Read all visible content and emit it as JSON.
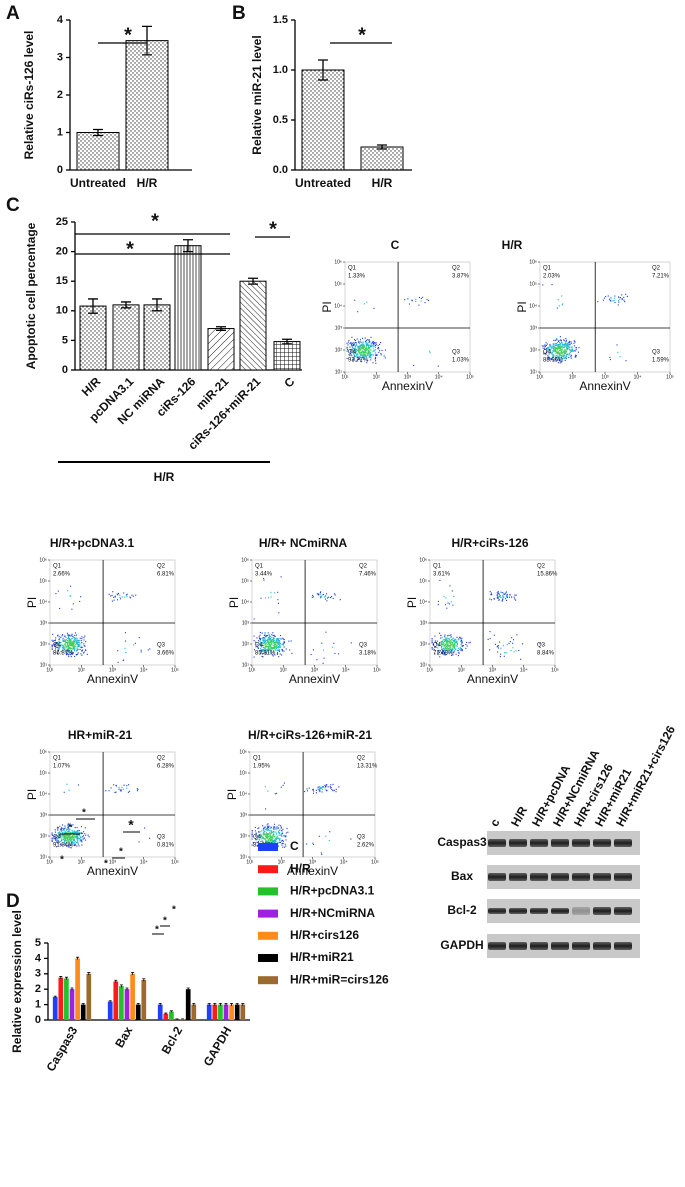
{
  "chart_data": [
    {
      "type": "bar",
      "panel": "A",
      "ylabel": "Relative ciRs-126 level",
      "categories": [
        "Untreated",
        "H/R"
      ],
      "values": [
        1,
        3.45
      ],
      "errors": [
        0.08,
        0.38
      ],
      "ylim": [
        0,
        4
      ],
      "yticks": [
        0,
        1,
        2,
        3,
        4
      ],
      "annotations": [
        "*"
      ]
    },
    {
      "type": "bar",
      "panel": "B",
      "ylabel": "Relative miR-21 level",
      "categories": [
        "Untreated",
        "H/R"
      ],
      "values": [
        1,
        0.23
      ],
      "errors": [
        0.1,
        0.02
      ],
      "ylim": [
        0,
        1.5
      ],
      "yticks": [
        {
          "value": 0,
          "label": "0.0"
        },
        {
          "value": 0.5,
          "label": "0.5"
        },
        {
          "value": 1,
          "label": "1.0"
        },
        {
          "value": 1.5,
          "label": "1.5"
        }
      ],
      "annotations": [
        "*"
      ]
    },
    {
      "type": "bar",
      "panel": "C",
      "ylabel": "Apoptotic cell percentage",
      "categories": [
        "H/R",
        "pcDNA3.1",
        "NC miRNA",
        "ciRs-126",
        "miR-21",
        "ciRs-126+miR-21",
        "C"
      ],
      "values": [
        10.8,
        11,
        11,
        21,
        7,
        15,
        4.8
      ],
      "errors": [
        1.2,
        0.5,
        1,
        1,
        0.3,
        0.5,
        0.4
      ],
      "ylim": [
        0,
        25
      ],
      "yticks": [
        0,
        5,
        10,
        15,
        20,
        25
      ],
      "group_label": "H/R",
      "annotations": [
        "*",
        "*",
        "*"
      ]
    },
    {
      "type": "flow",
      "title": "C",
      "xlabel": "AnnexinV",
      "ylabel": "PI",
      "quadrants": [
        "Q1",
        "Q2",
        "Q3",
        "Q4"
      ],
      "values": [
        1.33,
        3.87,
        1.03,
        93.77
      ],
      "value_labels": [
        "1.33%",
        "3.87%",
        "1.03%",
        "93.77%"
      ],
      "log_scale": true,
      "xlim": [
        10,
        100000
      ],
      "ylim": [
        10,
        1000000
      ],
      "xgate": 500,
      "ygate": 1000,
      "xticks": [
        {
          "value": 10,
          "label": "10¹"
        },
        {
          "value": 100,
          "label": "10²"
        },
        {
          "value": 1000,
          "label": "10³"
        },
        {
          "value": 10000,
          "label": "10⁴"
        },
        {
          "value": 100000,
          "label": "10⁵"
        }
      ],
      "yticks": [
        {
          "value": 10,
          "label": "10¹"
        },
        {
          "value": 100,
          "label": "10²"
        },
        {
          "value": 1000,
          "label": "10³"
        },
        {
          "value": 10000,
          "label": "10⁴"
        },
        {
          "value": 100000,
          "label": "10⁵"
        },
        {
          "value": 1000000,
          "label": "10⁶"
        }
      ]
    },
    {
      "type": "flow",
      "title": "H/R",
      "xlabel": "AnnexinV",
      "ylabel": "PI",
      "quadrants": [
        "Q1",
        "Q2",
        "Q3",
        "Q4"
      ],
      "values": [
        2.03,
        7.21,
        1.59,
        88.95
      ],
      "value_labels": [
        "2.03%",
        "7.21%",
        "1.59%",
        "88.95%"
      ],
      "log_scale": true,
      "xlim": [
        10,
        100000
      ],
      "ylim": [
        10,
        1000000
      ],
      "xgate": 500,
      "ygate": 1000,
      "xticks": [
        {
          "value": 10,
          "label": "10¹"
        },
        {
          "value": 100,
          "label": "10²"
        },
        {
          "value": 1000,
          "label": "10³"
        },
        {
          "value": 10000,
          "label": "10⁴"
        },
        {
          "value": 100000,
          "label": "10⁵"
        }
      ],
      "yticks": [
        {
          "value": 10,
          "label": "10¹"
        },
        {
          "value": 100,
          "label": "10²"
        },
        {
          "value": 1000,
          "label": "10³"
        },
        {
          "value": 10000,
          "label": "10⁴"
        },
        {
          "value": 100000,
          "label": "10⁵"
        },
        {
          "value": 1000000,
          "label": "10⁶"
        }
      ]
    },
    {
      "type": "flow",
      "title": "H/R+pcDNA3.1",
      "xlabel": "AnnexinV",
      "ylabel": "PI",
      "quadrants": [
        "Q1",
        "Q2",
        "Q3",
        "Q4"
      ],
      "values": [
        2.66,
        6.81,
        3.66,
        86.87
      ],
      "value_labels": [
        "2.66%",
        "6.81%",
        "3.66%",
        "86.87%"
      ],
      "log_scale": true,
      "xlim": [
        10,
        100000
      ],
      "ylim": [
        10,
        1000000
      ],
      "xgate": 500,
      "ygate": 1000,
      "xticks": [
        {
          "value": 10,
          "label": "10¹"
        },
        {
          "value": 100,
          "label": "10²"
        },
        {
          "value": 1000,
          "label": "10³"
        },
        {
          "value": 10000,
          "label": "10⁴"
        },
        {
          "value": 100000,
          "label": "10⁵"
        }
      ],
      "yticks": [
        {
          "value": 10,
          "label": "10¹"
        },
        {
          "value": 100,
          "label": "10²"
        },
        {
          "value": 1000,
          "label": "10³"
        },
        {
          "value": 10000,
          "label": "10⁴"
        },
        {
          "value": 100000,
          "label": "10⁵"
        },
        {
          "value": 1000000,
          "label": "10⁶"
        }
      ]
    },
    {
      "type": "flow",
      "title": "H/R+ NCmiRNA",
      "xlabel": "AnnexinV",
      "ylabel": "PI",
      "quadrants": [
        "Q1",
        "Q2",
        "Q3",
        "Q4"
      ],
      "values": [
        3.44,
        7.46,
        3.18,
        85.91
      ],
      "value_labels": [
        "3.44%",
        "7.46%",
        "3.18%",
        "85.91%"
      ],
      "log_scale": true,
      "xlim": [
        10,
        100000
      ],
      "ylim": [
        10,
        1000000
      ],
      "xgate": 500,
      "ygate": 1000,
      "xticks": [
        {
          "value": 10,
          "label": "10¹"
        },
        {
          "value": 100,
          "label": "10²"
        },
        {
          "value": 1000,
          "label": "10³"
        },
        {
          "value": 10000,
          "label": "10⁴"
        },
        {
          "value": 100000,
          "label": "10⁵"
        }
      ],
      "yticks": [
        {
          "value": 10,
          "label": "10¹"
        },
        {
          "value": 100,
          "label": "10²"
        },
        {
          "value": 1000,
          "label": "10³"
        },
        {
          "value": 10000,
          "label": "10⁴"
        },
        {
          "value": 100000,
          "label": "10⁵"
        },
        {
          "value": 1000000,
          "label": "10⁶"
        }
      ]
    },
    {
      "type": "flow",
      "title": "H/R+ciRs-126",
      "xlabel": "AnnexinV",
      "ylabel": "PI",
      "quadrants": [
        "Q1",
        "Q2",
        "Q3",
        "Q4"
      ],
      "values": [
        3.61,
        15.86,
        8.84,
        71.69
      ],
      "value_labels": [
        "3.61%",
        "15.86%",
        "8.84%",
        "71.69%"
      ],
      "log_scale": true,
      "xlim": [
        10,
        100000
      ],
      "ylim": [
        10,
        1000000
      ],
      "xgate": 500,
      "ygate": 1000,
      "xticks": [
        {
          "value": 10,
          "label": "10¹"
        },
        {
          "value": 100,
          "label": "10²"
        },
        {
          "value": 1000,
          "label": "10³"
        },
        {
          "value": 10000,
          "label": "10⁴"
        },
        {
          "value": 100000,
          "label": "10⁵"
        }
      ],
      "yticks": [
        {
          "value": 10,
          "label": "10¹"
        },
        {
          "value": 100,
          "label": "10²"
        },
        {
          "value": 1000,
          "label": "10³"
        },
        {
          "value": 10000,
          "label": "10⁴"
        },
        {
          "value": 100000,
          "label": "10⁵"
        },
        {
          "value": 1000000,
          "label": "10⁶"
        }
      ]
    },
    {
      "type": "flow",
      "title": "HR+miR-21",
      "xlabel": "AnnexinV",
      "ylabel": "PI",
      "quadrants": [
        "Q1",
        "Q2",
        "Q3",
        "Q4"
      ],
      "values": [
        1.07,
        6.28,
        0.81,
        91.84
      ],
      "value_labels": [
        "1.07%",
        "6.28%",
        "0.81%",
        "91.84%"
      ],
      "log_scale": true,
      "xlim": [
        10,
        100000
      ],
      "ylim": [
        10,
        1000000
      ],
      "xgate": 500,
      "ygate": 1000,
      "xticks": [
        {
          "value": 10,
          "label": "10¹"
        },
        {
          "value": 100,
          "label": "10²"
        },
        {
          "value": 1000,
          "label": "10³"
        },
        {
          "value": 10000,
          "label": "10⁴"
        },
        {
          "value": 100000,
          "label": "10⁵"
        }
      ],
      "yticks": [
        {
          "value": 10,
          "label": "10¹"
        },
        {
          "value": 100,
          "label": "10²"
        },
        {
          "value": 1000,
          "label": "10³"
        },
        {
          "value": 10000,
          "label": "10⁴"
        },
        {
          "value": 100000,
          "label": "10⁵"
        },
        {
          "value": 1000000,
          "label": "10⁶"
        }
      ]
    },
    {
      "type": "flow",
      "title": "H/R+ciRs-126+miR-21",
      "xlabel": "AnnexinV",
      "ylabel": "PI",
      "quadrants": [
        "Q1",
        "Q2",
        "Q3",
        "Q4"
      ],
      "values": [
        1.95,
        13.31,
        2.62,
        82.12
      ],
      "value_labels": [
        "1.95%",
        "13.31%",
        "2.62%",
        "82.12%"
      ],
      "log_scale": true,
      "xlim": [
        10,
        100000
      ],
      "ylim": [
        10,
        1000000
      ],
      "xgate": 500,
      "ygate": 1000,
      "xticks": [
        {
          "value": 10,
          "label": "10¹"
        },
        {
          "value": 100,
          "label": "10²"
        },
        {
          "value": 1000,
          "label": "10³"
        },
        {
          "value": 10000,
          "label": "10⁴"
        },
        {
          "value": 100000,
          "label": "10⁵"
        }
      ],
      "yticks": [
        {
          "value": 10,
          "label": "10¹"
        },
        {
          "value": 100,
          "label": "10²"
        },
        {
          "value": 1000,
          "label": "10³"
        },
        {
          "value": 10000,
          "label": "10⁴"
        },
        {
          "value": 100000,
          "label": "10⁵"
        },
        {
          "value": 1000000,
          "label": "10⁶"
        }
      ]
    },
    {
      "type": "grouped_bar",
      "panel": "D",
      "ylabel": "Relative expression level",
      "categories": [
        "Caspas3",
        "Bax",
        "Bcl-2",
        "GAPDH"
      ],
      "ylim": [
        0,
        5
      ],
      "yticks": [
        0,
        1,
        2,
        3,
        4,
        5
      ],
      "series": [
        {
          "name": "C",
          "color": "#1f3fff",
          "values": [
            1.5,
            1.2,
            1.0,
            1.0
          ],
          "errors": [
            0.05,
            0.05,
            0.08,
            0.08
          ]
        },
        {
          "name": "H/R",
          "color": "#ff1a1a",
          "values": [
            2.75,
            2.5,
            0.4,
            1.0
          ],
          "errors": [
            0.08,
            0.08,
            0.05,
            0.08
          ]
        },
        {
          "name": "H/R+pcDNA3.1",
          "color": "#22c22a",
          "values": [
            2.7,
            2.2,
            0.55,
            1.0
          ],
          "errors": [
            0.08,
            0.08,
            0.05,
            0.08
          ]
        },
        {
          "name": "H/R+NCmiRNA",
          "color": "#a020e0",
          "values": [
            2.0,
            2.0,
            0.05,
            1.0
          ],
          "errors": [
            0.08,
            0.08,
            0.02,
            0.08
          ]
        },
        {
          "name": "H/R+cirs126",
          "color": "#ff8c1a",
          "values": [
            4.0,
            3.0,
            0.05,
            1.0
          ],
          "errors": [
            0.08,
            0.08,
            0.02,
            0.08
          ]
        },
        {
          "name": "H/R+miR21",
          "color": "#000000",
          "values": [
            1.0,
            1.0,
            2.0,
            1.0
          ],
          "errors": [
            0.08,
            0.08,
            0.08,
            0.08
          ]
        },
        {
          "name": "H/R+miR=cirs126",
          "color": "#9b6a2f",
          "values": [
            3.0,
            2.6,
            1.0,
            1.0
          ],
          "errors": [
            0.08,
            0.08,
            0.08,
            0.08
          ]
        }
      ],
      "annotations": [
        "*",
        "*",
        "*",
        "*",
        "*",
        "*",
        "*",
        "*",
        "*"
      ]
    },
    {
      "type": "gel",
      "lanes": [
        "c",
        "H/R",
        "H/R+pcDNA",
        "H/R+NCmiRNA",
        "H/R+cirs126",
        "H/R+miR21",
        "H/R+miR21+cirs126"
      ],
      "rows": [
        "Caspas3",
        "Bax",
        "Bcl-2",
        "GAPDH"
      ]
    }
  ]
}
